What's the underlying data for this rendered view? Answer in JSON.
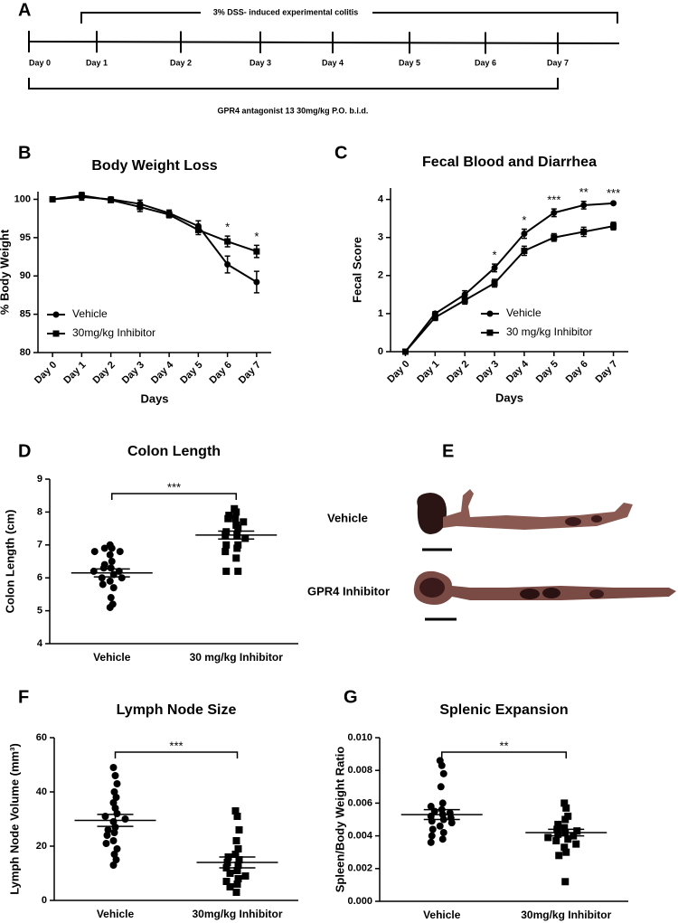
{
  "timeline": {
    "panel": "A",
    "top_label": "3% DSS- induced experimental colitis",
    "days": [
      "Day 0",
      "Day 1",
      "Day 2",
      "Day 3",
      "Day 4",
      "Day 5",
      "Day 6",
      "Day 7"
    ],
    "bottom_label": "GPR4 antagonist 13 30mg/kg P.O. b.i.d."
  },
  "photo_panel": {
    "panel": "E",
    "labels": [
      "Vehicle",
      "GPR4 Inhibitor"
    ]
  },
  "chart_data": [
    {
      "type": "line",
      "panel": "B",
      "title": "Body Weight Loss",
      "y_label": "% Body Weight",
      "x_label": "Days",
      "categories": [
        "Day 0",
        "Day 1",
        "Day 2",
        "Day 3",
        "Day 4",
        "Day 5",
        "Day 6",
        "Day 7"
      ],
      "series": [
        {
          "name": "Vehicle",
          "marker": "circle",
          "color": "#000000",
          "values": [
            100,
            100.3,
            100,
            99.4,
            98.2,
            96.5,
            91.5,
            89.2
          ],
          "errors": [
            0.2,
            0.4,
            0.3,
            0.5,
            0.4,
            0.7,
            1.1,
            1.4
          ]
        },
        {
          "name": "30mg/kg Inhibitor",
          "marker": "square",
          "color": "#000000",
          "values": [
            100,
            100.5,
            99.9,
            99.0,
            98.0,
            96.0,
            94.5,
            93.2
          ],
          "errors": [
            0.2,
            0.4,
            0.3,
            0.6,
            0.4,
            0.6,
            0.7,
            0.8
          ]
        }
      ],
      "annotations": [
        null,
        null,
        null,
        null,
        null,
        null,
        "*",
        "*"
      ],
      "ylim": [
        80,
        101
      ],
      "yticks": [
        80,
        85,
        90,
        95,
        100
      ],
      "legend": "lower left"
    },
    {
      "type": "line",
      "panel": "C",
      "title": "Fecal Blood and Diarrhea",
      "y_label": "Fecal  Score",
      "x_label": "Days",
      "categories": [
        "Day 0",
        "Day 1",
        "Day 2",
        "Day 3",
        "Day 4",
        "Day 5",
        "Day 6",
        "Day 7"
      ],
      "series": [
        {
          "name": "Vehicle",
          "marker": "circle",
          "color": "#000000",
          "values": [
            0,
            1.0,
            1.5,
            2.2,
            3.1,
            3.65,
            3.85,
            3.9
          ],
          "errors": [
            0.02,
            0.05,
            0.1,
            0.1,
            0.12,
            0.1,
            0.1,
            0.03
          ]
        },
        {
          "name": "30 mg/kg Inhibitor",
          "marker": "square",
          "color": "#000000",
          "values": [
            0,
            0.9,
            1.35,
            1.8,
            2.65,
            3.0,
            3.15,
            3.3
          ],
          "errors": [
            0.02,
            0.08,
            0.1,
            0.1,
            0.12,
            0.1,
            0.12,
            0.1
          ]
        }
      ],
      "annotations": [
        null,
        null,
        null,
        "*",
        "*",
        "***",
        "**",
        "***"
      ],
      "ylim": [
        0,
        4.3
      ],
      "yticks": [
        0,
        1,
        2,
        3,
        4
      ],
      "legend": "lower right"
    },
    {
      "type": "dot",
      "panel": "D",
      "title": "Colon Length",
      "y_label": "Colon Length (cm)",
      "categories": [
        "Vehicle",
        "30 mg/kg Inhibitor"
      ],
      "markers": [
        "circle",
        "square"
      ],
      "values": [
        [
          7.0,
          6.9,
          6.9,
          6.8,
          6.8,
          6.7,
          6.5,
          6.4,
          6.3,
          6.3,
          6.2,
          6.2,
          6.1,
          6.0,
          6.0,
          5.9,
          5.8,
          5.7,
          5.4,
          5.2,
          5.1
        ],
        [
          8.1,
          8.0,
          7.9,
          7.8,
          7.8,
          7.7,
          7.6,
          7.5,
          7.4,
          7.3,
          7.3,
          7.2,
          7.0,
          7.0,
          6.9,
          6.8,
          6.6,
          6.2,
          6.2
        ]
      ],
      "means": [
        6.15,
        7.3
      ],
      "sems": [
        0.12,
        0.12
      ],
      "significance": "***",
      "ylim": [
        4,
        9
      ],
      "yticks": [
        4,
        5,
        6,
        7,
        8,
        9
      ]
    },
    {
      "type": "dot",
      "panel": "F",
      "title": "Lymph Node Size",
      "y_label": "Lymph Node Volume (mm³)",
      "categories": [
        "Vehicle",
        "30mg/kg Inhibitor"
      ],
      "markers": [
        "circle",
        "square"
      ],
      "values": [
        [
          49,
          46,
          43,
          40,
          38,
          36,
          34,
          32,
          31,
          30,
          29,
          27,
          26,
          25,
          24,
          22,
          21,
          19,
          17,
          15,
          13
        ],
        [
          33,
          31,
          26,
          22,
          19,
          17,
          16,
          15,
          14,
          13,
          12,
          11,
          10,
          9,
          8,
          7,
          6,
          5,
          3
        ]
      ],
      "means": [
        29.5,
        14
      ],
      "sems": [
        2.2,
        2.0
      ],
      "significance": "***",
      "ylim": [
        0,
        60
      ],
      "yticks": [
        0,
        20,
        40,
        60
      ]
    },
    {
      "type": "dot",
      "panel": "G",
      "title": "Splenic Expansion",
      "y_label": "Spleen/Body Weight Ratio",
      "categories": [
        "Vehicle",
        "30mg/kg Inhibitor"
      ],
      "markers": [
        "circle",
        "square"
      ],
      "values": [
        [
          0.0086,
          0.0083,
          0.0078,
          0.007,
          0.006,
          0.0058,
          0.0056,
          0.0055,
          0.0054,
          0.0053,
          0.0052,
          0.0051,
          0.005,
          0.0049,
          0.0048,
          0.0046,
          0.0044,
          0.0042,
          0.004,
          0.0038,
          0.0036
        ],
        [
          0.006,
          0.0057,
          0.0052,
          0.005,
          0.0047,
          0.0045,
          0.0044,
          0.0043,
          0.0042,
          0.0041,
          0.004,
          0.0039,
          0.0038,
          0.0037,
          0.0035,
          0.0033,
          0.003,
          0.0028,
          0.0012
        ]
      ],
      "means": [
        0.0053,
        0.0042
      ],
      "sems": [
        0.0003,
        0.0002
      ],
      "significance": "**",
      "ylim": [
        0,
        0.01
      ],
      "yticks": [
        {
          "value": 0,
          "label": "0.000"
        },
        {
          "value": 0.002,
          "label": "0.002"
        },
        {
          "value": 0.004,
          "label": "0.004"
        },
        {
          "value": 0.006,
          "label": "0.006"
        },
        {
          "value": 0.008,
          "label": "0.008"
        },
        {
          "value": 0.01,
          "label": "0.010"
        }
      ]
    }
  ]
}
